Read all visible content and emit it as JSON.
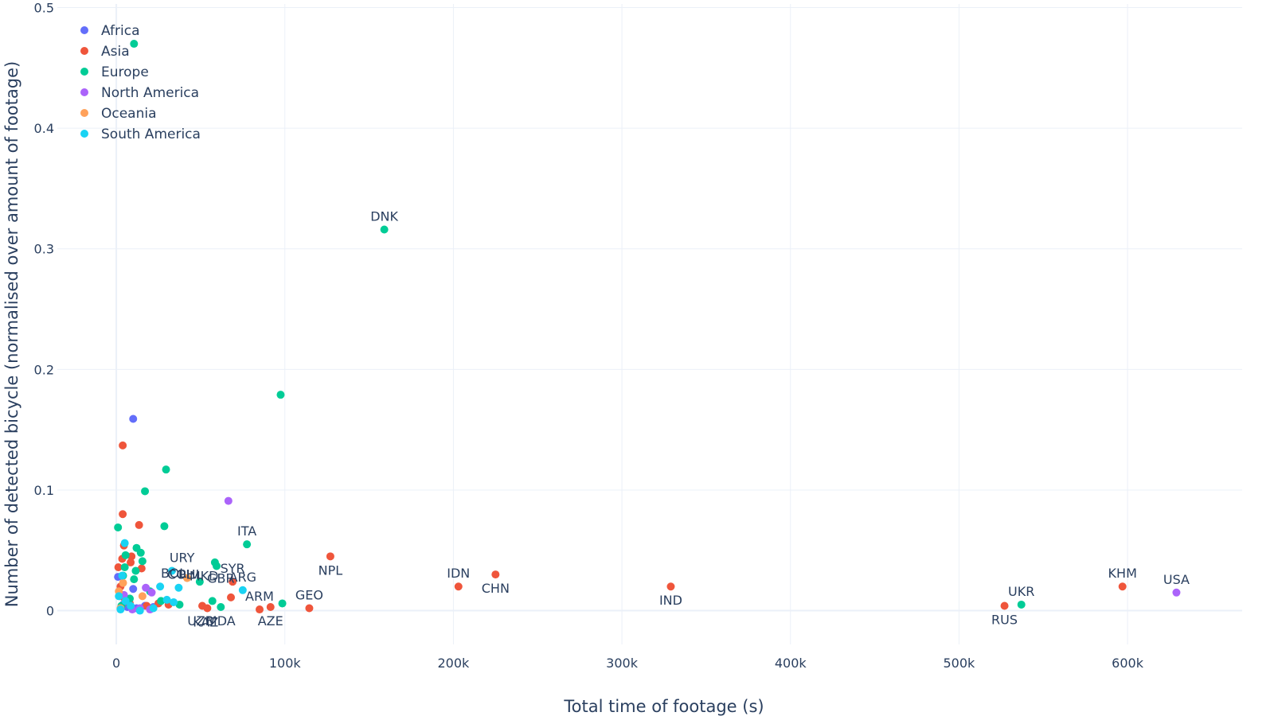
{
  "chart_data": {
    "type": "scatter",
    "xlabel": "Total time of footage (s)",
    "ylabel": "Number of detected bicycle (normalised over amount of footage)",
    "xlim": [
      -35000,
      668000
    ],
    "ylim": [
      -0.028,
      0.503
    ],
    "x_ticks": [
      0,
      100000,
      200000,
      300000,
      400000,
      500000,
      600000
    ],
    "x_tick_labels": [
      "0",
      "100k",
      "200k",
      "300k",
      "400k",
      "500k",
      "600k"
    ],
    "y_ticks": [
      0,
      0.1,
      0.2,
      0.3,
      0.4,
      0.5
    ],
    "y_tick_labels": [
      "0",
      "0.1",
      "0.2",
      "0.3",
      "0.4",
      "0.5"
    ],
    "grid": true,
    "legend_position": "top-left",
    "colors": {
      "Africa": "#636efa",
      "Asia": "#EF553B",
      "Europe": "#00cc96",
      "North America": "#ab63fa",
      "Oceania": "#FFA15A",
      "South America": "#19d3f3"
    },
    "series": [
      {
        "name": "Africa",
        "points": [
          {
            "x": 10000,
            "y": 0.159
          },
          {
            "x": 1000,
            "y": 0.028
          },
          {
            "x": 2500,
            "y": 0.012
          },
          {
            "x": 4000,
            "y": 0.005
          },
          {
            "x": 6500,
            "y": 0.003
          },
          {
            "x": 10000,
            "y": 0.018
          },
          {
            "x": 12000,
            "y": 0.002
          },
          {
            "x": 17000,
            "y": 0.004
          },
          {
            "x": 22000,
            "y": 0.003
          }
        ]
      },
      {
        "name": "Asia",
        "points": [
          {
            "x": 3800,
            "y": 0.137
          },
          {
            "x": 3800,
            "y": 0.08
          },
          {
            "x": 13500,
            "y": 0.071
          },
          {
            "x": 4500,
            "y": 0.054
          },
          {
            "x": 9000,
            "y": 0.045
          },
          {
            "x": 3500,
            "y": 0.043
          },
          {
            "x": 8500,
            "y": 0.04
          },
          {
            "x": 1200,
            "y": 0.036
          },
          {
            "x": 15000,
            "y": 0.035
          },
          {
            "x": 2500,
            "y": 0.02
          },
          {
            "x": 5000,
            "y": 0.01
          },
          {
            "x": 8000,
            "y": 0.006
          },
          {
            "x": 18000,
            "y": 0.004
          },
          {
            "x": 25000,
            "y": 0.006
          },
          {
            "x": 31000,
            "y": 0.005
          },
          {
            "x": 51000,
            "y": 0.004,
            "label": "UZB"
          },
          {
            "x": 54000,
            "y": 0.002,
            "label": "KAZ"
          },
          {
            "x": 68000,
            "y": 0.011
          },
          {
            "x": 69000,
            "y": 0.024,
            "label": "SYR"
          },
          {
            "x": 85000,
            "y": 0.001,
            "label": "ARM"
          },
          {
            "x": 91500,
            "y": 0.003,
            "label": "AZE"
          },
          {
            "x": 114500,
            "y": 0.002,
            "label": "GEO"
          },
          {
            "x": 127000,
            "y": 0.045,
            "label": "NPL"
          },
          {
            "x": 203000,
            "y": 0.02,
            "label": "IDN"
          },
          {
            "x": 225000,
            "y": 0.03,
            "label": "CHN"
          },
          {
            "x": 329000,
            "y": 0.02,
            "label": "IND"
          },
          {
            "x": 527000,
            "y": 0.004,
            "label": "RUS"
          },
          {
            "x": 597000,
            "y": 0.02,
            "label": "KHM"
          }
        ]
      },
      {
        "name": "Europe",
        "points": [
          {
            "x": 10500,
            "y": 0.47
          },
          {
            "x": 159000,
            "y": 0.316,
            "label": "DNK"
          },
          {
            "x": 97500,
            "y": 0.179
          },
          {
            "x": 29500,
            "y": 0.117
          },
          {
            "x": 17000,
            "y": 0.099
          },
          {
            "x": 28500,
            "y": 0.07
          },
          {
            "x": 1000,
            "y": 0.069
          },
          {
            "x": 77500,
            "y": 0.055,
            "label": "ITA"
          },
          {
            "x": 12000,
            "y": 0.052
          },
          {
            "x": 14500,
            "y": 0.048
          },
          {
            "x": 5500,
            "y": 0.046
          },
          {
            "x": 15500,
            "y": 0.041
          },
          {
            "x": 58500,
            "y": 0.04
          },
          {
            "x": 59500,
            "y": 0.037
          },
          {
            "x": 5000,
            "y": 0.036
          },
          {
            "x": 11500,
            "y": 0.033
          },
          {
            "x": 4000,
            "y": 0.029
          },
          {
            "x": 10500,
            "y": 0.026
          },
          {
            "x": 49500,
            "y": 0.024,
            "label": "GBR"
          },
          {
            "x": 20000,
            "y": 0.016
          },
          {
            "x": 26500,
            "y": 0.008
          },
          {
            "x": 37500,
            "y": 0.005
          },
          {
            "x": 57000,
            "y": 0.008
          },
          {
            "x": 62000,
            "y": 0.003,
            "label": "MDA"
          },
          {
            "x": 98500,
            "y": 0.006
          },
          {
            "x": 537000,
            "y": 0.005,
            "label": "UKR"
          },
          {
            "x": 8000,
            "y": 0.01
          },
          {
            "x": 3000,
            "y": 0.004
          }
        ]
      },
      {
        "name": "North America",
        "points": [
          {
            "x": 66500,
            "y": 0.091
          },
          {
            "x": 17500,
            "y": 0.019
          },
          {
            "x": 21000,
            "y": 0.015
          },
          {
            "x": 4500,
            "y": 0.013
          },
          {
            "x": 9500,
            "y": 0.001
          },
          {
            "x": 14000,
            "y": 0.002
          },
          {
            "x": 20000,
            "y": 0.001
          },
          {
            "x": 629000,
            "y": 0.015,
            "label": "USA"
          }
        ]
      },
      {
        "name": "Oceania",
        "points": [
          {
            "x": 42000,
            "y": 0.027
          },
          {
            "x": 1500,
            "y": 0.016
          },
          {
            "x": 4000,
            "y": 0.023
          },
          {
            "x": 15500,
            "y": 0.012
          },
          {
            "x": 2500,
            "y": 0.002
          }
        ]
      },
      {
        "name": "South America",
        "points": [
          {
            "x": 5000,
            "y": 0.056
          },
          {
            "x": 33000,
            "y": 0.033,
            "label": "URY"
          },
          {
            "x": 37000,
            "y": 0.019,
            "label": "COL"
          },
          {
            "x": 26000,
            "y": 0.02,
            "label": "BOL"
          },
          {
            "x": 75000,
            "y": 0.017,
            "label": "ARG"
          },
          {
            "x": 3500,
            "y": 0.029
          },
          {
            "x": 1500,
            "y": 0.012
          },
          {
            "x": 5500,
            "y": 0.008
          },
          {
            "x": 8500,
            "y": 0.004
          },
          {
            "x": 14000,
            "y": 0.0
          },
          {
            "x": 22000,
            "y": 0.002
          },
          {
            "x": 30000,
            "y": 0.009
          },
          {
            "x": 34000,
            "y": 0.007
          },
          {
            "x": 2500,
            "y": 0.001
          }
        ]
      }
    ],
    "text_labels": [
      {
        "text": "DNK",
        "x": 159000,
        "y": 0.316,
        "pos": "above"
      },
      {
        "text": "ITA",
        "x": 77500,
        "y": 0.055,
        "pos": "above"
      },
      {
        "text": "NPL",
        "x": 127000,
        "y": 0.045,
        "pos": "below"
      },
      {
        "text": "IDN",
        "x": 203000,
        "y": 0.02,
        "pos": "above"
      },
      {
        "text": "CHN",
        "x": 225000,
        "y": 0.03,
        "pos": "below"
      },
      {
        "text": "IND",
        "x": 329000,
        "y": 0.02,
        "pos": "below"
      },
      {
        "text": "KHM",
        "x": 597000,
        "y": 0.02,
        "pos": "above"
      },
      {
        "text": "USA",
        "x": 629000,
        "y": 0.015,
        "pos": "above"
      },
      {
        "text": "UKR",
        "x": 537000,
        "y": 0.005,
        "pos": "above"
      },
      {
        "text": "RUS",
        "x": 527000,
        "y": 0.004,
        "pos": "below"
      },
      {
        "text": "GEO",
        "x": 114500,
        "y": 0.002,
        "pos": "above"
      },
      {
        "text": "AZE",
        "x": 91500,
        "y": 0.003,
        "pos": "below"
      },
      {
        "text": "ARM",
        "x": 85000,
        "y": 0.001,
        "pos": "above"
      },
      {
        "text": "SYR",
        "x": 69000,
        "y": 0.024,
        "pos": "above"
      },
      {
        "text": "ARG",
        "x": 75000,
        "y": 0.017,
        "pos": "above"
      },
      {
        "text": "GBR",
        "x": 62000,
        "y": 0.016,
        "pos": "above"
      },
      {
        "text": "URY",
        "x": 39000,
        "y": 0.033,
        "pos": "above"
      },
      {
        "text": "BOL",
        "x": 34000,
        "y": 0.02,
        "pos": "above"
      },
      {
        "text": "COL",
        "x": 38000,
        "y": 0.019,
        "pos": "above"
      },
      {
        "text": "PHL",
        "x": 44000,
        "y": 0.019,
        "pos": "above"
      },
      {
        "text": "MKD",
        "x": 52000,
        "y": 0.018,
        "pos": "above"
      },
      {
        "text": "UZB",
        "x": 50000,
        "y": 0.003,
        "pos": "below"
      },
      {
        "text": "KAZ",
        "x": 53000,
        "y": 0.002,
        "pos": "below"
      },
      {
        "text": "MDA",
        "x": 62000,
        "y": 0.003,
        "pos": "below"
      }
    ]
  }
}
